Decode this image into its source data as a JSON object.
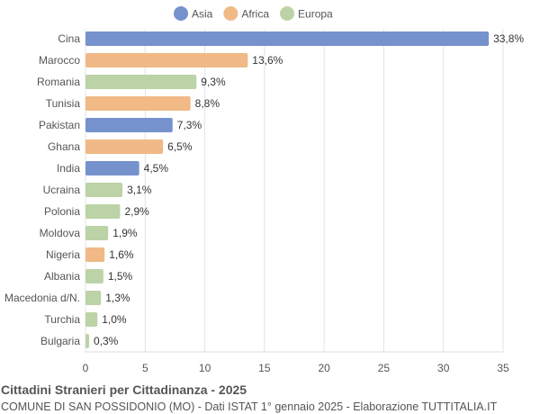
{
  "chart_data": {
    "type": "bar",
    "orientation": "horizontal",
    "title": "Cittadini Stranieri per Cittadinanza - 2025",
    "subtitle": "COMUNE DI SAN POSSIDONIO (MO) - Dati ISTAT 1° gennaio 2025 - Elaborazione TUTTITALIA.IT",
    "legend": {
      "position": "top",
      "entries": [
        {
          "name": "Asia",
          "color": "#7592cc"
        },
        {
          "name": "Africa",
          "color": "#f0b985"
        },
        {
          "name": "Europa",
          "color": "#bcd3a7"
        }
      ]
    },
    "categories": [
      "Cina",
      "Marocco",
      "Romania",
      "Tunisia",
      "Pakistan",
      "Ghana",
      "India",
      "Ucraina",
      "Polonia",
      "Moldova",
      "Nigeria",
      "Albania",
      "Macedonia d/N.",
      "Turchia",
      "Bulgaria"
    ],
    "values": [
      33.8,
      13.6,
      9.3,
      8.8,
      7.3,
      6.5,
      4.5,
      3.1,
      2.9,
      1.9,
      1.6,
      1.5,
      1.3,
      1.0,
      0.3
    ],
    "value_labels": [
      "33,8%",
      "13,6%",
      "9,3%",
      "8,8%",
      "7,3%",
      "6,5%",
      "4,5%",
      "3,1%",
      "2,9%",
      "1,9%",
      "1,6%",
      "1,5%",
      "1,3%",
      "1,0%",
      "0,3%"
    ],
    "groups": [
      "Asia",
      "Africa",
      "Europa",
      "Africa",
      "Asia",
      "Africa",
      "Asia",
      "Europa",
      "Europa",
      "Europa",
      "Africa",
      "Europa",
      "Europa",
      "Europa",
      "Europa"
    ],
    "xlim": [
      0,
      35
    ],
    "xticks": [
      "0",
      "5",
      "10",
      "15",
      "20",
      "25",
      "30",
      "35"
    ],
    "xtick_values": [
      0,
      5,
      10,
      15,
      20,
      25,
      30,
      35
    ],
    "grid": true
  }
}
